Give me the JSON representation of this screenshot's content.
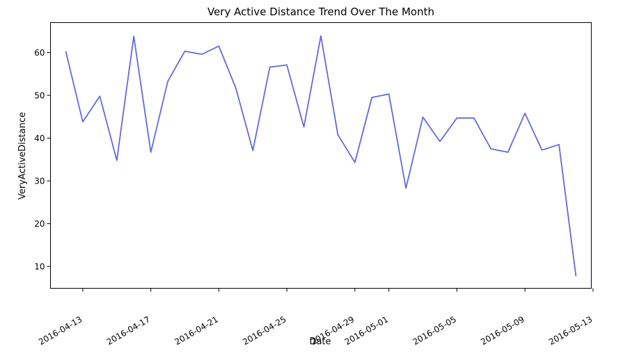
{
  "chart_data": {
    "type": "line",
    "title": "Very Active Distance Trend Over The Month",
    "xlabel": "Date",
    "ylabel": "VeryActiveDistance",
    "line_color": "#6369db",
    "ylim": [
      4.9,
      67
    ],
    "xlim_dates": [
      "2016-04-11.1",
      "2016-05-12.9"
    ],
    "yticks": [
      10,
      20,
      30,
      40,
      50,
      60
    ],
    "xticks": [
      "2016-04-13",
      "2016-04-17",
      "2016-04-21",
      "2016-04-25",
      "2016-04-29",
      "2016-05-01",
      "2016-05-05",
      "2016-05-09",
      "2016-05-13"
    ],
    "series": [
      {
        "name": "VeryActiveDistance",
        "x": [
          "2016-04-12",
          "2016-04-13",
          "2016-04-14",
          "2016-04-15",
          "2016-04-16",
          "2016-04-17",
          "2016-04-18",
          "2016-04-19",
          "2016-04-20",
          "2016-04-21",
          "2016-04-22",
          "2016-04-23",
          "2016-04-24",
          "2016-04-25",
          "2016-04-26",
          "2016-04-27",
          "2016-04-28",
          "2016-04-29",
          "2016-04-30",
          "2016-05-01",
          "2016-05-02",
          "2016-05-03",
          "2016-05-04",
          "2016-05-05",
          "2016-05-06",
          "2016-05-07",
          "2016-05-08",
          "2016-05-09",
          "2016-05-10",
          "2016-05-11",
          "2016-05-12"
        ],
        "values": [
          60.3,
          43.8,
          49.8,
          34.8,
          63.8,
          36.7,
          53.3,
          60.3,
          59.6,
          61.5,
          51.7,
          37.1,
          56.6,
          57.1,
          42.6,
          63.9,
          40.8,
          34.3,
          49.5,
          50.3,
          28.3,
          44.9,
          39.2,
          44.7,
          44.7,
          37.5,
          36.7,
          45.8,
          37.2,
          38.5,
          7.7
        ]
      }
    ]
  }
}
